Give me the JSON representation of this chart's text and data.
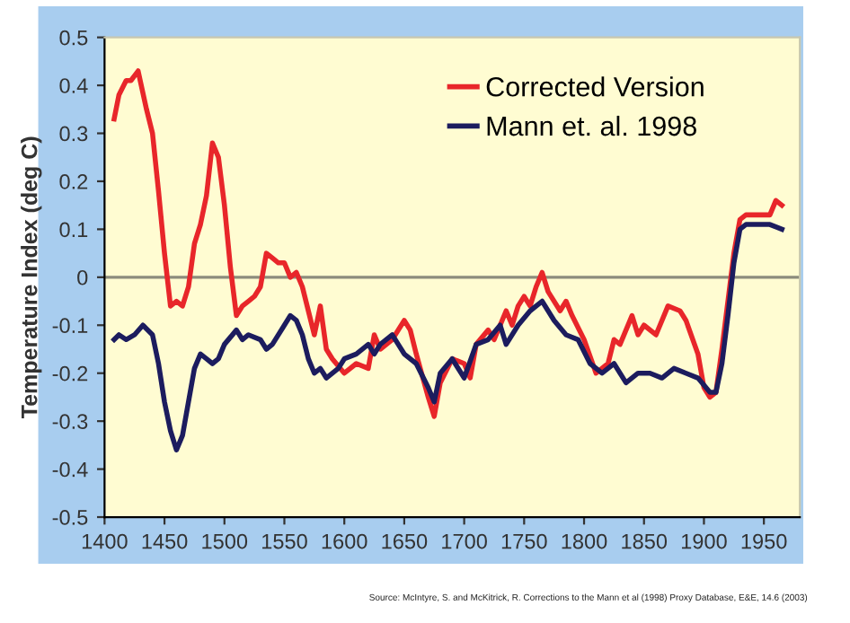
{
  "chart_data": {
    "type": "line",
    "ylabel": "Temperature Index (deg C)",
    "xlim": [
      1400,
      1980
    ],
    "xticks": [
      1400,
      1450,
      1500,
      1550,
      1600,
      1650,
      1700,
      1750,
      1800,
      1850,
      1900,
      1950
    ],
    "ylim": [
      -0.5,
      0.5
    ],
    "yticks": [
      -0.5,
      -0.4,
      -0.3,
      -0.2,
      -0.1,
      0,
      0.1,
      0.2,
      0.3,
      0.4,
      0.5
    ],
    "grid": false,
    "legend": "top",
    "line_style": "solid",
    "marker": "none",
    "ref_lines": [
      {
        "axis": "y",
        "value": 0,
        "color": "#8c8c7c"
      }
    ],
    "annotations": [
      "Source: McIntyre, S. and McKitrick, R. Corrections to the Mann et al (1998) Proxy Database, E&E, 14.6 (2003)"
    ],
    "series": [
      {
        "name": "Corrected Version",
        "color": "#e8262a",
        "x": [
          1408,
          1412,
          1418,
          1422,
          1428,
          1435,
          1440,
          1445,
          1450,
          1455,
          1460,
          1465,
          1470,
          1475,
          1480,
          1485,
          1490,
          1495,
          1500,
          1505,
          1510,
          1515,
          1520,
          1525,
          1530,
          1535,
          1540,
          1545,
          1550,
          1555,
          1560,
          1565,
          1570,
          1575,
          1580,
          1585,
          1590,
          1600,
          1610,
          1620,
          1625,
          1630,
          1640,
          1650,
          1655,
          1660,
          1670,
          1675,
          1680,
          1690,
          1700,
          1705,
          1710,
          1720,
          1725,
          1735,
          1740,
          1745,
          1750,
          1755,
          1760,
          1765,
          1770,
          1780,
          1785,
          1790,
          1800,
          1810,
          1820,
          1825,
          1830,
          1840,
          1845,
          1850,
          1860,
          1870,
          1880,
          1885,
          1895,
          1900,
          1905,
          1910,
          1915,
          1920,
          1925,
          1930,
          1935,
          1945,
          1955,
          1960,
          1965
        ],
        "values": [
          0.33,
          0.38,
          0.41,
          0.41,
          0.43,
          0.35,
          0.3,
          0.18,
          0.05,
          -0.06,
          -0.05,
          -0.06,
          -0.02,
          0.07,
          0.11,
          0.17,
          0.28,
          0.25,
          0.15,
          0.02,
          -0.08,
          -0.06,
          -0.05,
          -0.04,
          -0.02,
          0.05,
          0.04,
          0.03,
          0.03,
          0.0,
          0.01,
          -0.02,
          -0.07,
          -0.12,
          -0.06,
          -0.15,
          -0.17,
          -0.2,
          -0.18,
          -0.19,
          -0.12,
          -0.15,
          -0.13,
          -0.09,
          -0.11,
          -0.16,
          -0.25,
          -0.29,
          -0.22,
          -0.17,
          -0.18,
          -0.21,
          -0.14,
          -0.11,
          -0.13,
          -0.07,
          -0.1,
          -0.06,
          -0.04,
          -0.06,
          -0.02,
          0.01,
          -0.03,
          -0.07,
          -0.05,
          -0.08,
          -0.13,
          -0.2,
          -0.18,
          -0.13,
          -0.14,
          -0.08,
          -0.12,
          -0.1,
          -0.12,
          -0.06,
          -0.07,
          -0.09,
          -0.16,
          -0.23,
          -0.25,
          -0.24,
          -0.15,
          -0.05,
          0.05,
          0.12,
          0.13,
          0.13,
          0.13,
          0.16,
          0.15
        ]
      },
      {
        "name": "Mann et. al. 1998",
        "color": "#1c1c5e",
        "x": [
          1408,
          1412,
          1418,
          1425,
          1432,
          1440,
          1445,
          1450,
          1455,
          1460,
          1465,
          1470,
          1475,
          1480,
          1485,
          1490,
          1495,
          1500,
          1510,
          1515,
          1520,
          1530,
          1535,
          1540,
          1550,
          1555,
          1560,
          1565,
          1570,
          1575,
          1580,
          1585,
          1595,
          1600,
          1610,
          1620,
          1625,
          1630,
          1640,
          1645,
          1650,
          1660,
          1670,
          1675,
          1680,
          1690,
          1700,
          1710,
          1720,
          1730,
          1735,
          1745,
          1755,
          1765,
          1775,
          1785,
          1795,
          1805,
          1815,
          1825,
          1835,
          1845,
          1855,
          1865,
          1875,
          1885,
          1895,
          1905,
          1910,
          1915,
          1920,
          1925,
          1930,
          1935,
          1945,
          1955,
          1965
        ],
        "values": [
          -0.13,
          -0.12,
          -0.13,
          -0.12,
          -0.1,
          -0.12,
          -0.18,
          -0.26,
          -0.32,
          -0.36,
          -0.33,
          -0.26,
          -0.19,
          -0.16,
          -0.17,
          -0.18,
          -0.17,
          -0.14,
          -0.11,
          -0.13,
          -0.12,
          -0.13,
          -0.15,
          -0.14,
          -0.1,
          -0.08,
          -0.09,
          -0.12,
          -0.17,
          -0.2,
          -0.19,
          -0.21,
          -0.19,
          -0.17,
          -0.16,
          -0.14,
          -0.16,
          -0.14,
          -0.12,
          -0.14,
          -0.16,
          -0.18,
          -0.23,
          -0.26,
          -0.2,
          -0.17,
          -0.21,
          -0.14,
          -0.13,
          -0.1,
          -0.14,
          -0.1,
          -0.07,
          -0.05,
          -0.09,
          -0.12,
          -0.13,
          -0.18,
          -0.2,
          -0.18,
          -0.22,
          -0.2,
          -0.2,
          -0.21,
          -0.19,
          -0.2,
          -0.21,
          -0.24,
          -0.24,
          -0.18,
          -0.08,
          0.03,
          0.1,
          0.11,
          0.11,
          0.11,
          0.1
        ]
      }
    ]
  }
}
